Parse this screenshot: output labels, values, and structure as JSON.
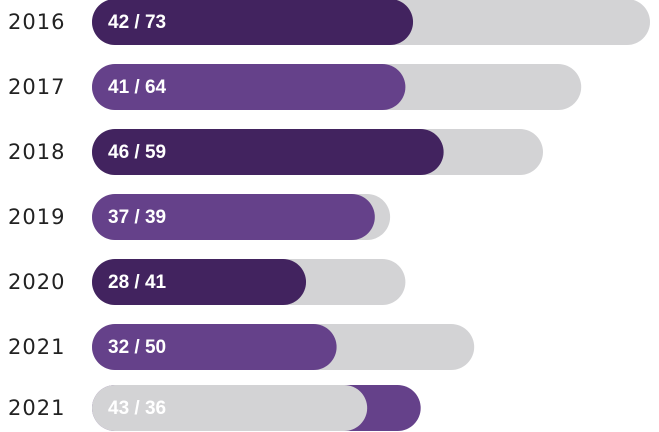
{
  "chart_data": {
    "type": "progress",
    "categories": [
      "2016",
      "2017",
      "2018",
      "2019",
      "2020",
      "2021",
      "2021"
    ],
    "series": [
      {
        "colors": [
          "#42235f",
          "#65418a",
          "#42235f",
          "#65418a",
          "#42235f",
          "#65418a",
          "#65418a"
        ],
        "values": [
          42,
          41,
          46,
          37,
          28,
          32,
          43
        ]
      },
      {
        "color": "#d3d3d5",
        "values": [
          73,
          64,
          59,
          39,
          41,
          50,
          36
        ]
      }
    ],
    "value_labels": [
      "42 / 73",
      "41 / 64",
      "46 / 59",
      "37 / 39",
      "28 / 41",
      "32 / 50",
      "43 / 36"
    ]
  }
}
